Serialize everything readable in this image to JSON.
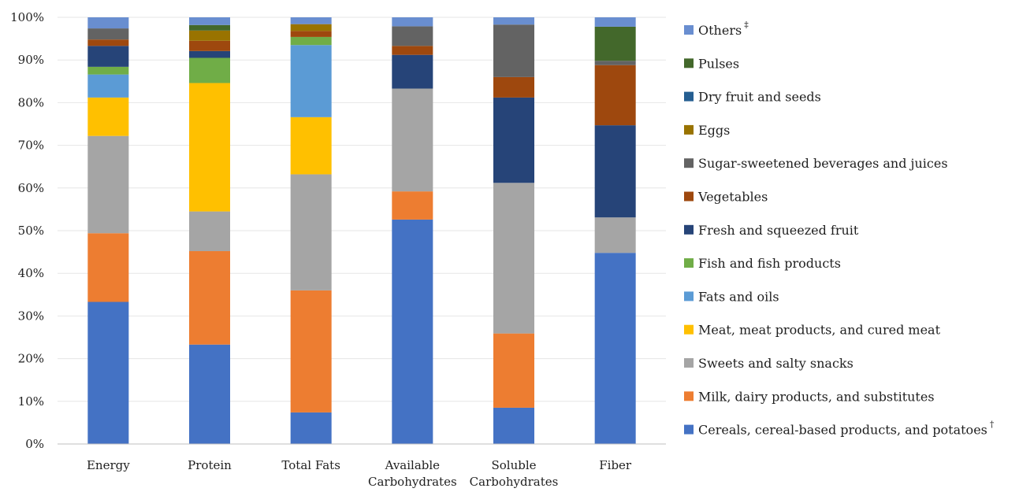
{
  "chart_data": {
    "type": "bar",
    "stacked": true,
    "categories": [
      "Energy",
      "Protein",
      "Total Fats",
      [
        "Available",
        "Carbohydrates"
      ],
      [
        "Soluble",
        "Carbohydrates"
      ],
      "Fiber"
    ],
    "ylim": [
      0,
      100
    ],
    "yticks": [
      "0%",
      "10%",
      "20%",
      "30%",
      "40%",
      "50%",
      "60%",
      "70%",
      "80%",
      "90%",
      "100%"
    ],
    "legend_position": "right",
    "series": [
      {
        "name": "Cereals, cereal-based products, and potatoes",
        "sup": "†",
        "color": "#4472C4",
        "values": [
          33.3,
          23.3,
          7.4,
          52.6,
          8.5,
          44.8
        ]
      },
      {
        "name": "Milk, dairy products, and substitutes",
        "color": "#ED7D31",
        "values": [
          16.1,
          21.9,
          28.6,
          6.6,
          17.4,
          0
        ]
      },
      {
        "name": "Sweets and salty snacks",
        "color": "#A5A5A5",
        "values": [
          22.8,
          9.3,
          27.2,
          24.1,
          35.3,
          8.3
        ]
      },
      {
        "name": "Meat, meat products, and cured meat",
        "color": "#FFC000",
        "values": [
          9.0,
          30.1,
          13.4,
          0,
          0,
          0
        ]
      },
      {
        "name": "Fats and oils",
        "color": "#5B9BD5",
        "values": [
          5.4,
          0,
          16.9,
          0,
          0,
          0
        ]
      },
      {
        "name": "Fish and fish products",
        "color": "#70AD47",
        "values": [
          1.8,
          5.9,
          1.9,
          0,
          0,
          0
        ]
      },
      {
        "name": "Fresh and squeezed fruit",
        "color": "#264478",
        "values": [
          4.9,
          1.6,
          0,
          7.9,
          20.0,
          21.6
        ]
      },
      {
        "name": "Vegetables",
        "color": "#9E480E",
        "values": [
          1.5,
          2.4,
          1.4,
          2.1,
          4.8,
          14.1
        ]
      },
      {
        "name": "Sugar-sweetened beverages and juices",
        "color": "#636363",
        "values": [
          2.6,
          0,
          0,
          4.6,
          12.3,
          1.0
        ]
      },
      {
        "name": "Eggs",
        "color": "#997300",
        "values": [
          0,
          2.4,
          1.6,
          0,
          0,
          0
        ]
      },
      {
        "name": "Dry fruit and seeds",
        "color": "#255E91",
        "values": [
          0,
          0,
          0,
          0,
          0,
          0
        ]
      },
      {
        "name": "Pulses",
        "color": "#43682B",
        "values": [
          0,
          1.3,
          0,
          0,
          0,
          8.0
        ]
      },
      {
        "name": "Others",
        "sup": "‡",
        "color": "#698ED0",
        "values": [
          2.6,
          1.8,
          1.6,
          2.1,
          1.7,
          2.2
        ]
      }
    ]
  }
}
